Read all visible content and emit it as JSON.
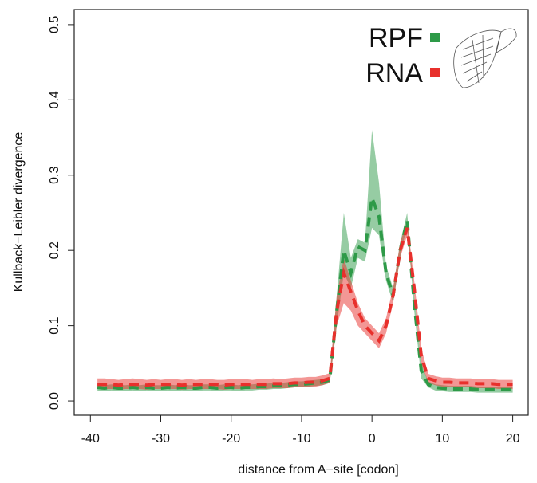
{
  "chart_data": {
    "type": "band-line",
    "x_label": "distance from A−site [codon]",
    "y_label": "Kullback−Leibler divergence",
    "x": [
      -39,
      -38,
      -37,
      -36,
      -35,
      -34,
      -33,
      -32,
      -31,
      -30,
      -29,
      -28,
      -27,
      -26,
      -25,
      -24,
      -23,
      -22,
      -21,
      -20,
      -19,
      -18,
      -17,
      -16,
      -15,
      -14,
      -13,
      -12,
      -11,
      -10,
      -9,
      -8,
      -7,
      -6,
      -5,
      -4,
      -3,
      -2,
      -1,
      0,
      1,
      2,
      3,
      4,
      5,
      6,
      7,
      8,
      9,
      10,
      11,
      12,
      13,
      14,
      15,
      16,
      17,
      18,
      19,
      20
    ],
    "xlim": [
      -42.3,
      22.2
    ],
    "xticks": [
      -40,
      -30,
      -20,
      -10,
      0,
      10,
      20
    ],
    "ylim": [
      -0.019,
      0.52
    ],
    "yticks": [
      {
        "value": 0,
        "label": "0.0"
      },
      0.1,
      0.2,
      0.3,
      0.4,
      0.5
    ],
    "legend": "top-right",
    "series": [
      {
        "name": "RPF",
        "color": "#2e9a48",
        "values": [
          0.018,
          0.017,
          0.018,
          0.017,
          0.017,
          0.018,
          0.017,
          0.018,
          0.017,
          0.017,
          0.018,
          0.017,
          0.018,
          0.017,
          0.017,
          0.018,
          0.018,
          0.017,
          0.018,
          0.018,
          0.017,
          0.018,
          0.018,
          0.019,
          0.019,
          0.02,
          0.02,
          0.021,
          0.022,
          0.022,
          0.023,
          0.024,
          0.025,
          0.028,
          0.12,
          0.2,
          0.17,
          0.205,
          0.2,
          0.27,
          0.245,
          0.17,
          0.14,
          0.2,
          0.24,
          0.13,
          0.04,
          0.022,
          0.018,
          0.017,
          0.016,
          0.016,
          0.016,
          0.016,
          0.015,
          0.015,
          0.015,
          0.015,
          0.015,
          0.015
        ],
        "lower": [
          0.014,
          0.013,
          0.014,
          0.013,
          0.013,
          0.014,
          0.013,
          0.014,
          0.013,
          0.013,
          0.014,
          0.013,
          0.014,
          0.013,
          0.013,
          0.014,
          0.014,
          0.013,
          0.014,
          0.014,
          0.013,
          0.014,
          0.014,
          0.015,
          0.015,
          0.016,
          0.016,
          0.017,
          0.018,
          0.018,
          0.019,
          0.02,
          0.021,
          0.024,
          0.1,
          0.17,
          0.15,
          0.19,
          0.185,
          0.23,
          0.22,
          0.16,
          0.13,
          0.19,
          0.235,
          0.12,
          0.03,
          0.018,
          0.014,
          0.013,
          0.012,
          0.012,
          0.012,
          0.012,
          0.011,
          0.011,
          0.011,
          0.011,
          0.011,
          0.011
        ],
        "upper": [
          0.022,
          0.021,
          0.022,
          0.021,
          0.021,
          0.022,
          0.021,
          0.022,
          0.021,
          0.021,
          0.022,
          0.021,
          0.022,
          0.021,
          0.021,
          0.022,
          0.022,
          0.021,
          0.022,
          0.022,
          0.021,
          0.022,
          0.022,
          0.023,
          0.023,
          0.024,
          0.024,
          0.025,
          0.026,
          0.026,
          0.027,
          0.028,
          0.029,
          0.032,
          0.14,
          0.25,
          0.19,
          0.215,
          0.21,
          0.36,
          0.29,
          0.18,
          0.15,
          0.21,
          0.25,
          0.14,
          0.05,
          0.026,
          0.022,
          0.021,
          0.02,
          0.02,
          0.02,
          0.02,
          0.019,
          0.019,
          0.019,
          0.019,
          0.019,
          0.019
        ]
      },
      {
        "name": "RNA",
        "color": "#e8302c",
        "values": [
          0.022,
          0.022,
          0.022,
          0.021,
          0.022,
          0.022,
          0.022,
          0.021,
          0.022,
          0.022,
          0.022,
          0.022,
          0.021,
          0.022,
          0.022,
          0.022,
          0.022,
          0.022,
          0.021,
          0.022,
          0.022,
          0.022,
          0.022,
          0.022,
          0.022,
          0.023,
          0.023,
          0.023,
          0.024,
          0.024,
          0.025,
          0.025,
          0.027,
          0.03,
          0.12,
          0.17,
          0.145,
          0.12,
          0.1,
          0.09,
          0.08,
          0.1,
          0.14,
          0.2,
          0.23,
          0.15,
          0.06,
          0.03,
          0.027,
          0.025,
          0.025,
          0.024,
          0.024,
          0.024,
          0.023,
          0.023,
          0.023,
          0.022,
          0.022,
          0.022
        ],
        "lower": [
          0.016,
          0.016,
          0.016,
          0.015,
          0.016,
          0.016,
          0.016,
          0.015,
          0.016,
          0.016,
          0.016,
          0.016,
          0.015,
          0.016,
          0.016,
          0.016,
          0.016,
          0.016,
          0.015,
          0.016,
          0.016,
          0.016,
          0.016,
          0.016,
          0.016,
          0.017,
          0.017,
          0.017,
          0.018,
          0.018,
          0.019,
          0.019,
          0.021,
          0.024,
          0.1,
          0.13,
          0.12,
          0.1,
          0.09,
          0.08,
          0.07,
          0.09,
          0.13,
          0.19,
          0.22,
          0.14,
          0.05,
          0.024,
          0.021,
          0.019,
          0.019,
          0.018,
          0.018,
          0.018,
          0.017,
          0.017,
          0.017,
          0.016,
          0.016,
          0.016
        ],
        "upper": [
          0.03,
          0.03,
          0.029,
          0.028,
          0.029,
          0.03,
          0.029,
          0.028,
          0.029,
          0.028,
          0.029,
          0.029,
          0.028,
          0.029,
          0.028,
          0.029,
          0.029,
          0.028,
          0.028,
          0.029,
          0.029,
          0.029,
          0.028,
          0.029,
          0.029,
          0.03,
          0.029,
          0.03,
          0.031,
          0.031,
          0.032,
          0.032,
          0.034,
          0.037,
          0.14,
          0.19,
          0.16,
          0.13,
          0.11,
          0.1,
          0.09,
          0.11,
          0.15,
          0.21,
          0.24,
          0.16,
          0.07,
          0.036,
          0.033,
          0.031,
          0.031,
          0.03,
          0.03,
          0.03,
          0.029,
          0.029,
          0.029,
          0.028,
          0.028,
          0.028
        ]
      }
    ]
  }
}
